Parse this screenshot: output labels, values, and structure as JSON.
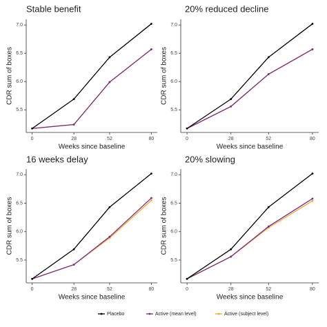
{
  "chart_data": [
    {
      "type": "line",
      "title": "Stable benefit",
      "xlabel": "Weeks since baseline",
      "ylabel": "CDR sum of boxes",
      "x": [
        0,
        28,
        52,
        80
      ],
      "xlim": [
        -4,
        84
      ],
      "xticks": [
        0,
        28,
        52,
        80
      ],
      "ylim": [
        5.1,
        7.1
      ],
      "yticks": [
        5.5,
        {
          "value": 6,
          "label": "6.0"
        },
        6.5,
        {
          "value": 7,
          "label": "7.0"
        }
      ],
      "series": [
        {
          "name": "Placebo",
          "color": "#000000",
          "values": [
            5.17,
            5.69,
            6.43,
            7.02
          ]
        },
        {
          "name": "Active (mean level)",
          "color": "#7b2a7b",
          "values": [
            5.17,
            5.24,
            5.99,
            6.57
          ]
        },
        {
          "name": "Active (subject level)",
          "color": "#f2a72e",
          "values": [
            5.17,
            5.24,
            5.99,
            6.57
          ]
        }
      ]
    },
    {
      "type": "line",
      "title": "20% reduced decline",
      "xlabel": "Weeks since baseline",
      "ylabel": "CDR sum of boxes",
      "x": [
        0,
        28,
        52,
        80
      ],
      "xlim": [
        -4,
        84
      ],
      "xticks": [
        0,
        28,
        52,
        80
      ],
      "ylim": [
        5.1,
        7.1
      ],
      "yticks": [
        5.5,
        {
          "value": 6,
          "label": "6.0"
        },
        6.5,
        {
          "value": 7,
          "label": "7.0"
        }
      ],
      "series": [
        {
          "name": "Placebo",
          "color": "#000000",
          "values": [
            5.17,
            5.69,
            6.43,
            7.02
          ]
        },
        {
          "name": "Active (mean level)",
          "color": "#7b2a7b",
          "values": [
            5.17,
            5.56,
            6.13,
            6.57
          ]
        },
        {
          "name": "Active (subject level)",
          "color": "#f2a72e",
          "values": [
            5.17,
            5.56,
            6.13,
            6.57
          ]
        }
      ]
    },
    {
      "type": "line",
      "title": "16 weeks delay",
      "xlabel": "Weeks since baseline",
      "ylabel": "CDR sum of boxes",
      "x": [
        0,
        28,
        52,
        80
      ],
      "xlim": [
        -4,
        84
      ],
      "xticks": [
        0,
        28,
        52,
        80
      ],
      "ylim": [
        5.1,
        7.1
      ],
      "yticks": [
        5.5,
        {
          "value": 6,
          "label": "6.0"
        },
        6.5,
        {
          "value": 7,
          "label": "7.0"
        }
      ],
      "series": [
        {
          "name": "Placebo",
          "color": "#000000",
          "values": [
            5.17,
            5.69,
            6.43,
            7.02
          ]
        },
        {
          "name": "Active (mean level)",
          "color": "#7b2a7b",
          "values": [
            5.17,
            5.42,
            5.91,
            6.59
          ]
        },
        {
          "name": "Active (subject level)",
          "color": "#f2a72e",
          "values": [
            5.17,
            5.42,
            5.89,
            6.55
          ]
        }
      ]
    },
    {
      "type": "line",
      "title": "20% slowing",
      "xlabel": "Weeks since baseline",
      "ylabel": "CDR sum of boxes",
      "x": [
        0,
        28,
        52,
        80
      ],
      "xlim": [
        -4,
        84
      ],
      "xticks": [
        0,
        28,
        52,
        80
      ],
      "ylim": [
        5.1,
        7.1
      ],
      "yticks": [
        5.5,
        {
          "value": 6,
          "label": "6.0"
        },
        6.5,
        {
          "value": 7,
          "label": "7.0"
        }
      ],
      "series": [
        {
          "name": "Placebo",
          "color": "#000000",
          "values": [
            5.17,
            5.69,
            6.43,
            7.02
          ]
        },
        {
          "name": "Active (mean level)",
          "color": "#7b2a7b",
          "values": [
            5.17,
            5.56,
            6.09,
            6.58
          ]
        },
        {
          "name": "Active (subject level)",
          "color": "#f2a72e",
          "values": [
            5.17,
            5.56,
            6.07,
            6.54
          ]
        }
      ]
    }
  ]
}
